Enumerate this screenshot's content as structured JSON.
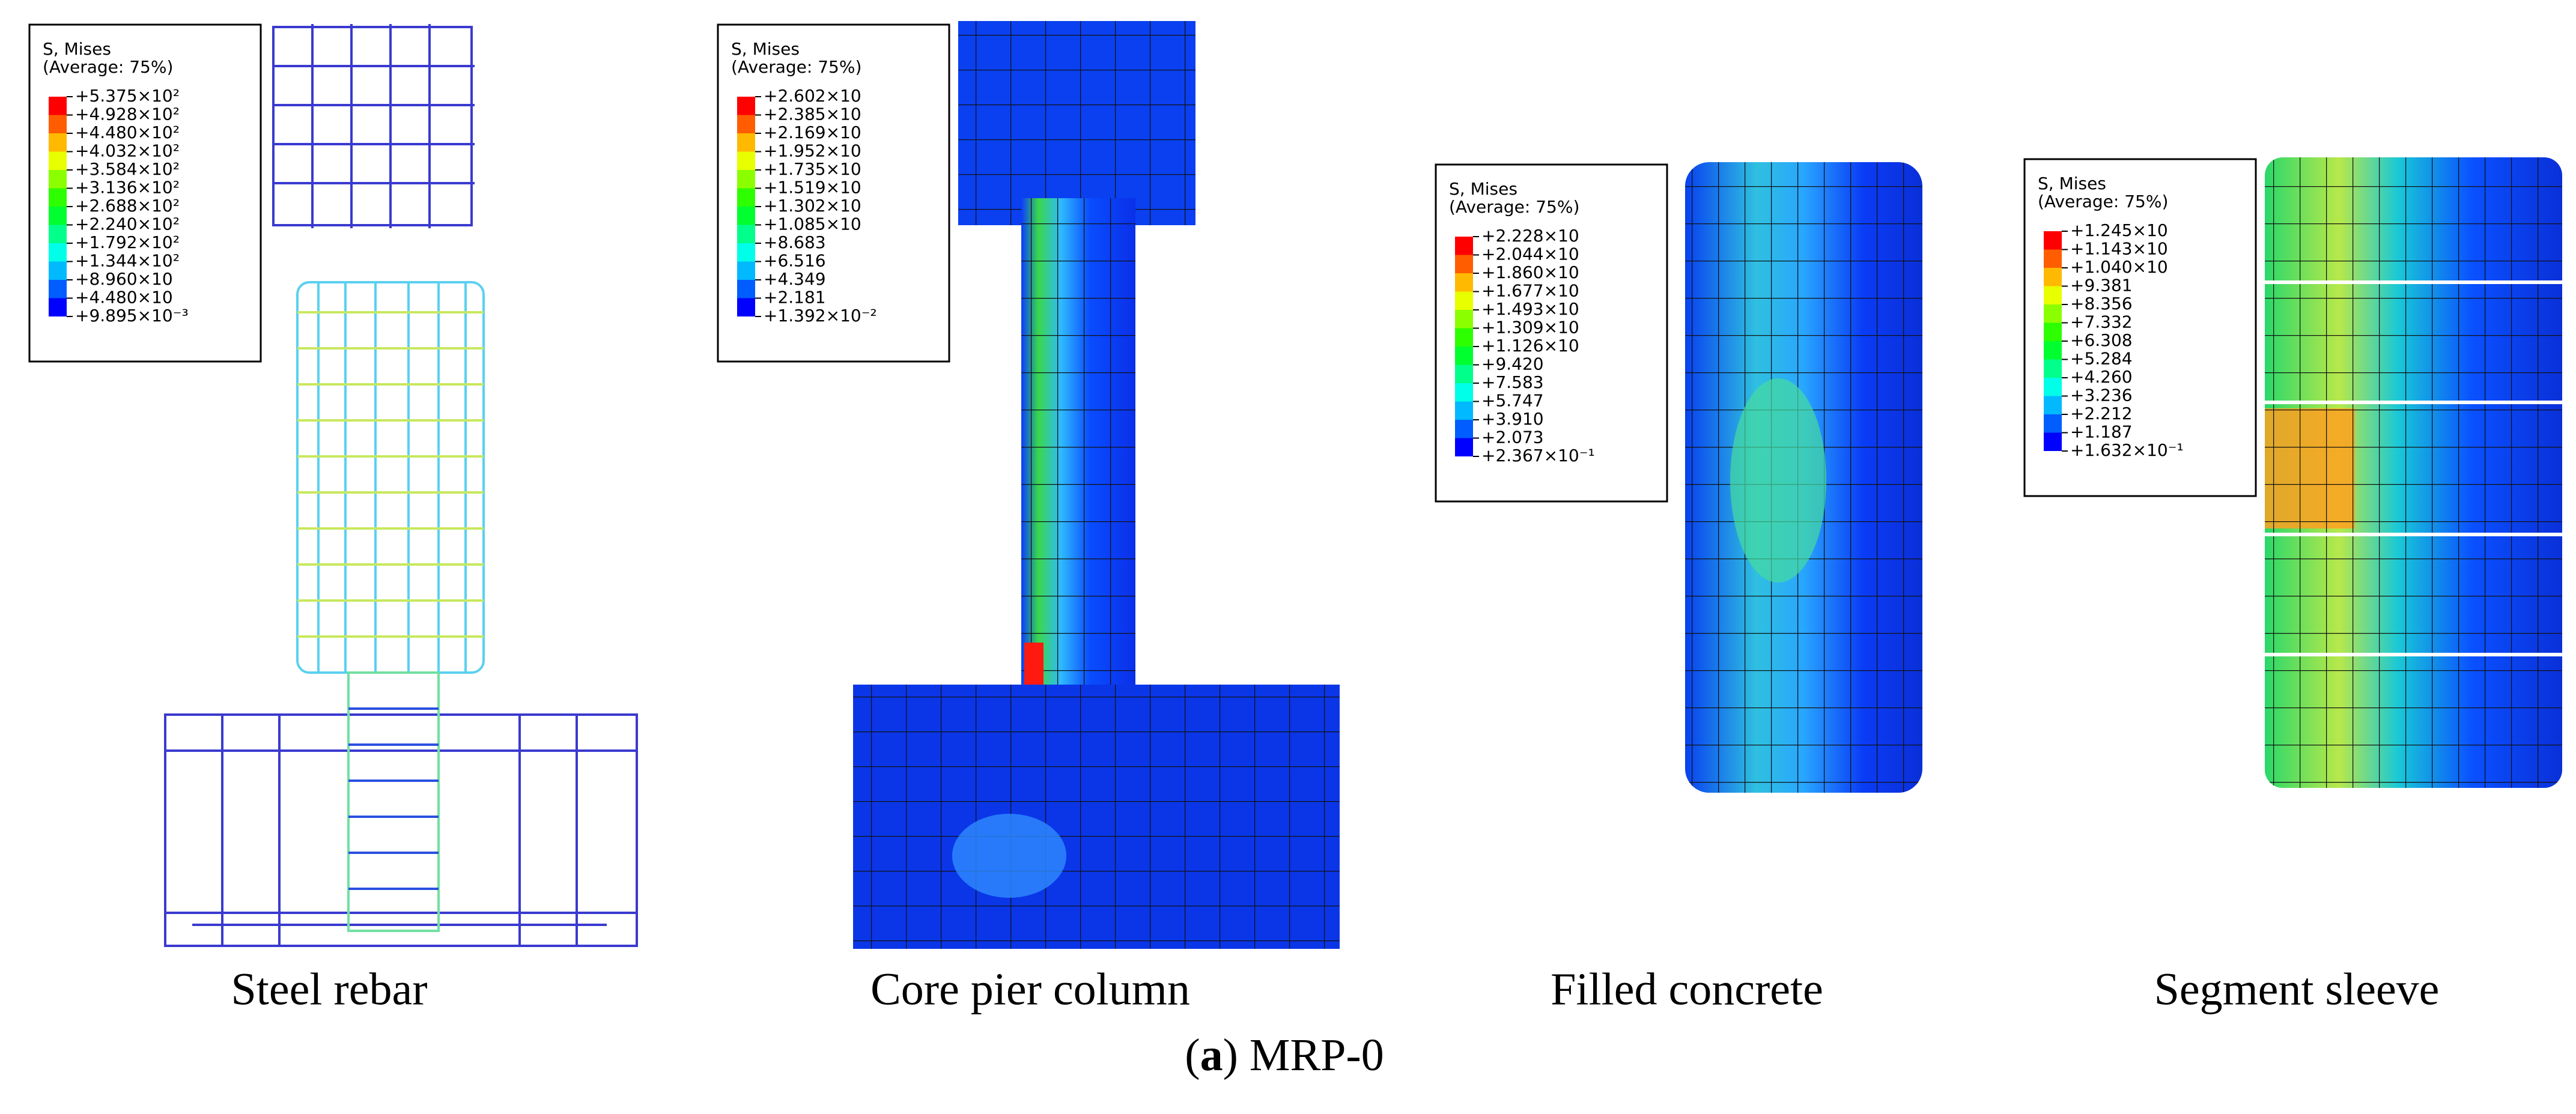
{
  "panels": [
    {
      "legend": {
        "title": "S, Mises",
        "subtitle": "(Average: 75%)",
        "labels": [
          "+5.375×10²",
          "+4.928×10²",
          "+4.480×10²",
          "+4.032×10²",
          "+3.584×10²",
          "+3.136×10²",
          "+2.688×10²",
          "+2.240×10²",
          "+1.792×10²",
          "+1.344×10²",
          "+8.960×10",
          "+4.480×10",
          "+9.895×10⁻³"
        ]
      },
      "caption": "Steel rebar"
    },
    {
      "legend": {
        "title": "S, Mises",
        "subtitle": "(Average: 75%)",
        "labels": [
          "+2.602×10",
          "+2.385×10",
          "+2.169×10",
          "+1.952×10",
          "+1.735×10",
          "+1.519×10",
          "+1.302×10",
          "+1.085×10",
          "+8.683",
          "+6.516",
          "+4.349",
          "+2.181",
          "+1.392×10⁻²"
        ]
      },
      "caption": "Core pier column"
    },
    {
      "legend": {
        "title": "S, Mises",
        "subtitle": "(Average: 75%)",
        "labels": [
          "+2.228×10",
          "+2.044×10",
          "+1.860×10",
          "+1.677×10",
          "+1.493×10",
          "+1.309×10",
          "+1.126×10",
          "+9.420",
          "+7.583",
          "+5.747",
          "+3.910",
          "+2.073",
          "+2.367×10⁻¹"
        ]
      },
      "caption": "Filled concrete"
    },
    {
      "legend": {
        "title": "S, Mises",
        "subtitle": "(Average: 75%)",
        "labels": [
          "+1.245×10",
          "+1.143×10",
          "+1.040×10",
          "+9.381",
          "+8.356",
          "+7.332",
          "+6.308",
          "+5.284",
          "+4.260",
          "+3.236",
          "+2.212",
          "+1.187",
          "+1.632×10⁻¹"
        ]
      },
      "caption": "Segment sleeve"
    }
  ],
  "figure_caption": {
    "parts": [
      "(",
      "a",
      ") MRP-0"
    ]
  }
}
